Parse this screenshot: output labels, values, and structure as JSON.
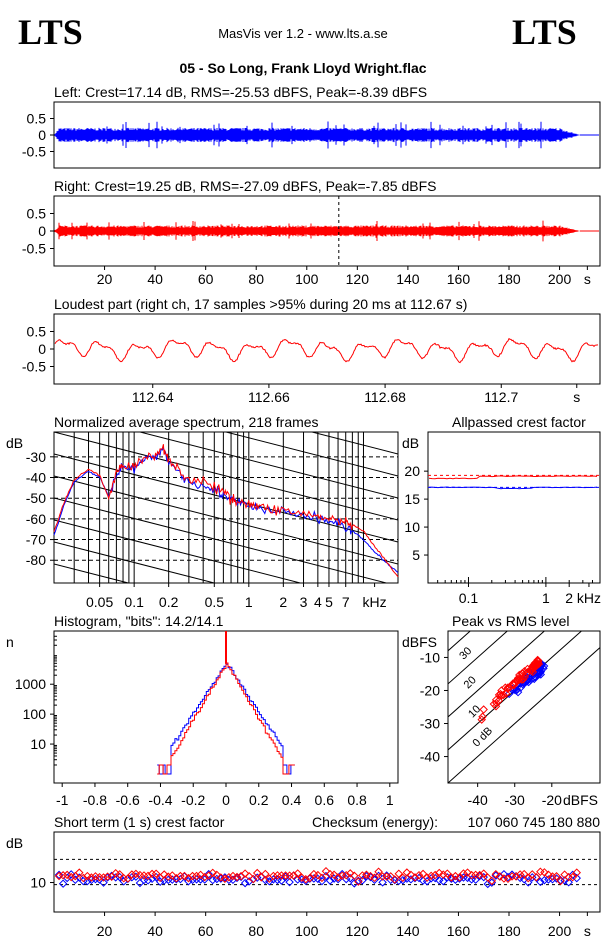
{
  "header": {
    "logo_left": "LTS",
    "logo_right": "LTS",
    "app": "MasVis ver 1.2 - www.lts.a.se",
    "file": "05 - So Long, Frank Lloyd Wright.flac"
  },
  "colors": {
    "left": "#0000ff",
    "right": "#ff0000",
    "grid": "#000000"
  },
  "chart_data": [
    {
      "id": "left_waveform",
      "type": "area",
      "title": "Left: Crest=17.14 dB, RMS=-25.53 dBFS, Peak=-8.39 dBFS",
      "yticks": [
        "0.5",
        "0",
        "-0.5"
      ],
      "ylim": [
        -1,
        1
      ],
      "xlim": [
        0,
        216
      ],
      "envelope": {
        "peak_typ": 0.15,
        "peak_max": 0.38,
        "start_s": 0,
        "end_s": 208
      },
      "color": "#0000ff"
    },
    {
      "id": "right_waveform",
      "type": "area",
      "title": "Right: Crest=19.25 dB, RMS=-27.09 dBFS, Peak=-7.85 dBFS",
      "yticks": [
        "0.5",
        "0",
        "-0.5"
      ],
      "ylim": [
        -1,
        1
      ],
      "xlim": [
        0,
        216
      ],
      "xticks": [
        "20",
        "40",
        "60",
        "80",
        "100",
        "120",
        "140",
        "160",
        "180",
        "200",
        "s"
      ],
      "marker_s": 112.67,
      "color": "#ff0000"
    },
    {
      "id": "loudest_part",
      "type": "line",
      "title": "Loudest part (right ch, 17 samples >95% during 20 ms at 112.67 s)",
      "yticks": [
        "0.5",
        "0",
        "-0.5"
      ],
      "xticks": [
        "112.64",
        "112.66",
        "112.68",
        "112.7",
        "s"
      ],
      "xlim": [
        112.623,
        112.717
      ],
      "ylim": [
        -1,
        1
      ],
      "color": "#ff0000"
    },
    {
      "id": "spectrum",
      "type": "line",
      "title": "Normalized average spectrum, 218 frames",
      "ylabel": "dB",
      "yticks": [
        "-30",
        "-40",
        "-50",
        "-60",
        "-70",
        "-80"
      ],
      "xticks": [
        "0.05",
        "0.1",
        "0.2",
        "0.5",
        "1",
        "2",
        "3",
        "4",
        "5",
        "7",
        "kHz"
      ],
      "xlim_khz": [
        0.02,
        20
      ],
      "ylim": [
        -91,
        -18
      ],
      "series": [
        {
          "color": "#0000ff",
          "x": [
            0.02,
            0.025,
            0.03,
            0.04,
            0.05,
            0.06,
            0.07,
            0.08,
            0.1,
            0.12,
            0.15,
            0.18,
            0.2,
            0.25,
            0.3,
            0.4,
            0.5,
            0.6,
            0.7,
            0.8,
            1,
            1.2,
            1.5,
            2,
            3,
            4,
            5,
            6,
            7,
            8,
            10,
            12,
            15,
            20
          ],
          "y": [
            -68,
            -52,
            -42,
            -37,
            -40,
            -49,
            -38,
            -35,
            -36,
            -32,
            -31,
            -26,
            -32,
            -38,
            -42,
            -43,
            -46,
            -48,
            -51,
            -52,
            -54,
            -55,
            -56,
            -57,
            -58,
            -60,
            -61,
            -62,
            -64,
            -66,
            -70,
            -75,
            -80,
            -86
          ]
        },
        {
          "color": "#ff0000",
          "x": [
            0.02,
            0.025,
            0.03,
            0.04,
            0.05,
            0.06,
            0.07,
            0.08,
            0.1,
            0.12,
            0.15,
            0.18,
            0.2,
            0.25,
            0.3,
            0.4,
            0.5,
            0.6,
            0.7,
            0.8,
            1,
            1.2,
            1.5,
            2,
            3,
            4,
            5,
            6,
            7,
            8,
            10,
            12,
            15,
            20
          ],
          "y": [
            -66,
            -51,
            -41,
            -36,
            -39,
            -50,
            -37,
            -34,
            -35,
            -31,
            -30,
            -25,
            -31,
            -37,
            -41,
            -42,
            -45,
            -47,
            -50,
            -51,
            -53,
            -54,
            -55,
            -56,
            -57,
            -59,
            -60,
            -61,
            -62,
            -63,
            -66,
            -72,
            -79,
            -88
          ]
        }
      ]
    },
    {
      "id": "allpassed_crest",
      "type": "line",
      "title": "Allpassed crest factor",
      "ylabel": "dB",
      "yticks": [
        "20",
        "15",
        "10",
        "5"
      ],
      "xticks": [
        "0.1",
        "1",
        "2",
        "kHz"
      ],
      "ylim": [
        0,
        27
      ],
      "series": [
        {
          "color": "#0000ff",
          "level": 17.1,
          "ref": 17.1
        },
        {
          "color": "#ff0000",
          "level": 19.2,
          "ref": 19.25
        }
      ]
    },
    {
      "id": "histogram",
      "type": "line",
      "title": "Histogram, \"bits\": 14.2/14.1",
      "ylabel": "n",
      "yticks": [
        "1000",
        "100",
        "10"
      ],
      "xticks": [
        "-1",
        "-0.8",
        "-0.6",
        "-0.4",
        "-0.2",
        "0",
        "0.2",
        "0.4",
        "0.6",
        "0.8",
        "1"
      ],
      "xlim": [
        -1.05,
        1.05
      ],
      "ylim_log": [
        0.5,
        60000
      ],
      "series": [
        {
          "color": "#0000ff",
          "peak": 5000,
          "decay": 19.0
        },
        {
          "color": "#ff0000",
          "peak": 5000,
          "decay": 21.5
        }
      ]
    },
    {
      "id": "peak_vs_rms",
      "type": "scatter",
      "title": "Peak vs RMS level",
      "ylabel": "dBFS",
      "xlabel": "dBFS",
      "yticks": [
        "-10",
        "-20",
        "-30",
        "-40"
      ],
      "xticks": [
        "-40",
        "-30",
        "-20"
      ],
      "xlim": [
        -48,
        -7
      ],
      "ylim": [
        -48,
        -2
      ],
      "diag_labels": [
        "40",
        "30",
        "20",
        "10",
        "0 dB"
      ],
      "series": [
        {
          "color": "#0000ff",
          "rms_range": [
            -33,
            -22
          ],
          "crest": 10
        },
        {
          "color": "#ff0000",
          "rms_range": [
            -40,
            -23
          ],
          "crest": 12
        }
      ]
    },
    {
      "id": "short_term_crest",
      "type": "scatter",
      "title": "Short term (1 s) crest factor",
      "checksum_label": "Checksum (energy):",
      "checksum": "107 060 745 180 880",
      "ylabel": "dB",
      "yticks": [
        "10"
      ],
      "xticks": [
        "20",
        "40",
        "60",
        "80",
        "100",
        "120",
        "140",
        "160",
        "180",
        "200",
        "s"
      ],
      "xlim": [
        0,
        216
      ],
      "ylim": [
        3,
        22
      ],
      "refs": [
        15.5,
        9.5
      ],
      "series": [
        {
          "color": "#0000ff",
          "mean": 10.9
        },
        {
          "color": "#ff0000",
          "mean": 11.6
        }
      ]
    }
  ]
}
